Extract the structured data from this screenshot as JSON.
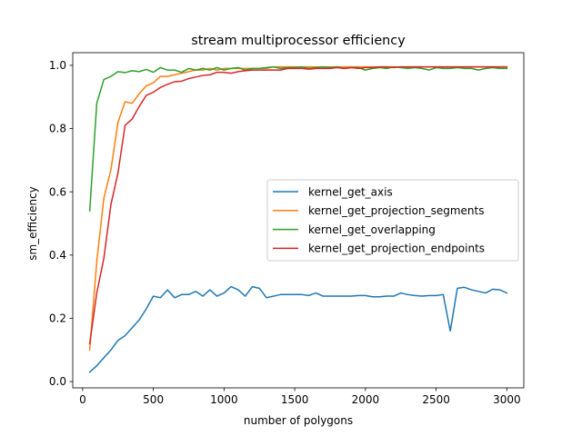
{
  "chart_data": {
    "type": "line",
    "title": "stream multiprocessor efficiency",
    "xlabel": "number of polygons",
    "ylabel": "sm_efficiency",
    "xlim": [
      -70,
      3120
    ],
    "ylim": [
      -0.02,
      1.04
    ],
    "xticks": [
      0,
      500,
      1000,
      1500,
      2000,
      2500,
      3000
    ],
    "yticks": [
      0.0,
      0.2,
      0.4,
      0.6,
      0.8,
      1.0
    ],
    "xtick_labels": [
      "0",
      "500",
      "1000",
      "1500",
      "2000",
      "2500",
      "3000"
    ],
    "ytick_labels": [
      "0.0",
      "0.2",
      "0.4",
      "0.6",
      "0.8",
      "1.0"
    ],
    "grid": false,
    "legend_position": "center-right",
    "x": [
      50,
      100,
      150,
      200,
      250,
      300,
      350,
      400,
      450,
      500,
      550,
      600,
      650,
      700,
      750,
      800,
      850,
      900,
      950,
      1000,
      1050,
      1100,
      1150,
      1200,
      1250,
      1300,
      1350,
      1400,
      1450,
      1500,
      1550,
      1600,
      1650,
      1700,
      1750,
      1800,
      1850,
      1900,
      1950,
      2000,
      2050,
      2100,
      2150,
      2200,
      2250,
      2300,
      2350,
      2400,
      2450,
      2500,
      2550,
      2600,
      2650,
      2700,
      2750,
      2800,
      2850,
      2900,
      2950,
      3000
    ],
    "series": [
      {
        "name": "kernel_get_axis",
        "color": "#1f77b4",
        "values": [
          0.03,
          0.05,
          0.075,
          0.1,
          0.13,
          0.145,
          0.17,
          0.195,
          0.23,
          0.27,
          0.265,
          0.29,
          0.265,
          0.275,
          0.275,
          0.285,
          0.27,
          0.29,
          0.27,
          0.28,
          0.3,
          0.29,
          0.27,
          0.3,
          0.295,
          0.265,
          0.27,
          0.275,
          0.275,
          0.275,
          0.275,
          0.272,
          0.28,
          0.27,
          0.27,
          0.27,
          0.27,
          0.27,
          0.272,
          0.272,
          0.268,
          0.268,
          0.27,
          0.27,
          0.28,
          0.275,
          0.272,
          0.27,
          0.272,
          0.272,
          0.275,
          0.16,
          0.295,
          0.298,
          0.29,
          0.285,
          0.28,
          0.292,
          0.29,
          0.28
        ]
      },
      {
        "name": "kernel_get_projection_segments",
        "color": "#ff7f0e",
        "values": [
          0.1,
          0.38,
          0.58,
          0.67,
          0.82,
          0.885,
          0.88,
          0.91,
          0.935,
          0.945,
          0.965,
          0.965,
          0.97,
          0.975,
          0.98,
          0.985,
          0.985,
          0.99,
          0.985,
          0.99,
          0.99,
          0.99,
          0.99,
          0.99,
          0.99,
          0.99,
          0.995,
          0.995,
          0.995,
          0.995,
          0.995,
          0.995,
          0.995,
          0.995,
          0.995,
          0.995,
          0.995,
          0.995,
          0.995,
          0.995,
          0.995,
          0.995,
          0.995,
          0.995,
          0.995,
          0.995,
          0.995,
          0.995,
          0.995,
          0.995,
          0.995,
          0.995,
          0.995,
          0.995,
          0.995,
          0.995,
          0.995,
          0.995,
          0.995,
          0.995
        ]
      },
      {
        "name": "kernel_get_overlapping",
        "color": "#2ca02c",
        "values": [
          0.54,
          0.88,
          0.955,
          0.965,
          0.98,
          0.977,
          0.983,
          0.98,
          0.987,
          0.978,
          0.993,
          0.985,
          0.985,
          0.978,
          0.99,
          0.985,
          0.99,
          0.985,
          0.993,
          0.985,
          0.99,
          0.993,
          0.985,
          0.99,
          0.99,
          0.993,
          0.995,
          0.99,
          0.993,
          0.993,
          0.995,
          0.99,
          0.993,
          0.995,
          0.993,
          0.995,
          0.99,
          0.993,
          0.993,
          0.985,
          0.99,
          0.993,
          0.99,
          0.995,
          0.993,
          0.99,
          0.993,
          0.99,
          0.985,
          0.993,
          0.99,
          0.99,
          0.993,
          0.99,
          0.99,
          0.985,
          0.99,
          0.993,
          0.99,
          0.99
        ]
      },
      {
        "name": "kernel_get_projection_endpoints",
        "color": "#d62728",
        "values": [
          0.12,
          0.28,
          0.39,
          0.56,
          0.66,
          0.81,
          0.83,
          0.87,
          0.905,
          0.915,
          0.93,
          0.94,
          0.948,
          0.95,
          0.958,
          0.963,
          0.968,
          0.97,
          0.978,
          0.978,
          0.975,
          0.98,
          0.983,
          0.985,
          0.985,
          0.985,
          0.985,
          0.985,
          0.99,
          0.99,
          0.99,
          0.988,
          0.99,
          0.99,
          0.99,
          0.993,
          0.99,
          0.993,
          0.99,
          0.993,
          0.993,
          0.995,
          0.995,
          0.993,
          0.995,
          0.995,
          0.995,
          0.995,
          0.995,
          0.995,
          0.995,
          0.995,
          0.995,
          0.995,
          0.995,
          0.995,
          0.995,
          0.995,
          0.995,
          0.995
        ]
      }
    ]
  }
}
